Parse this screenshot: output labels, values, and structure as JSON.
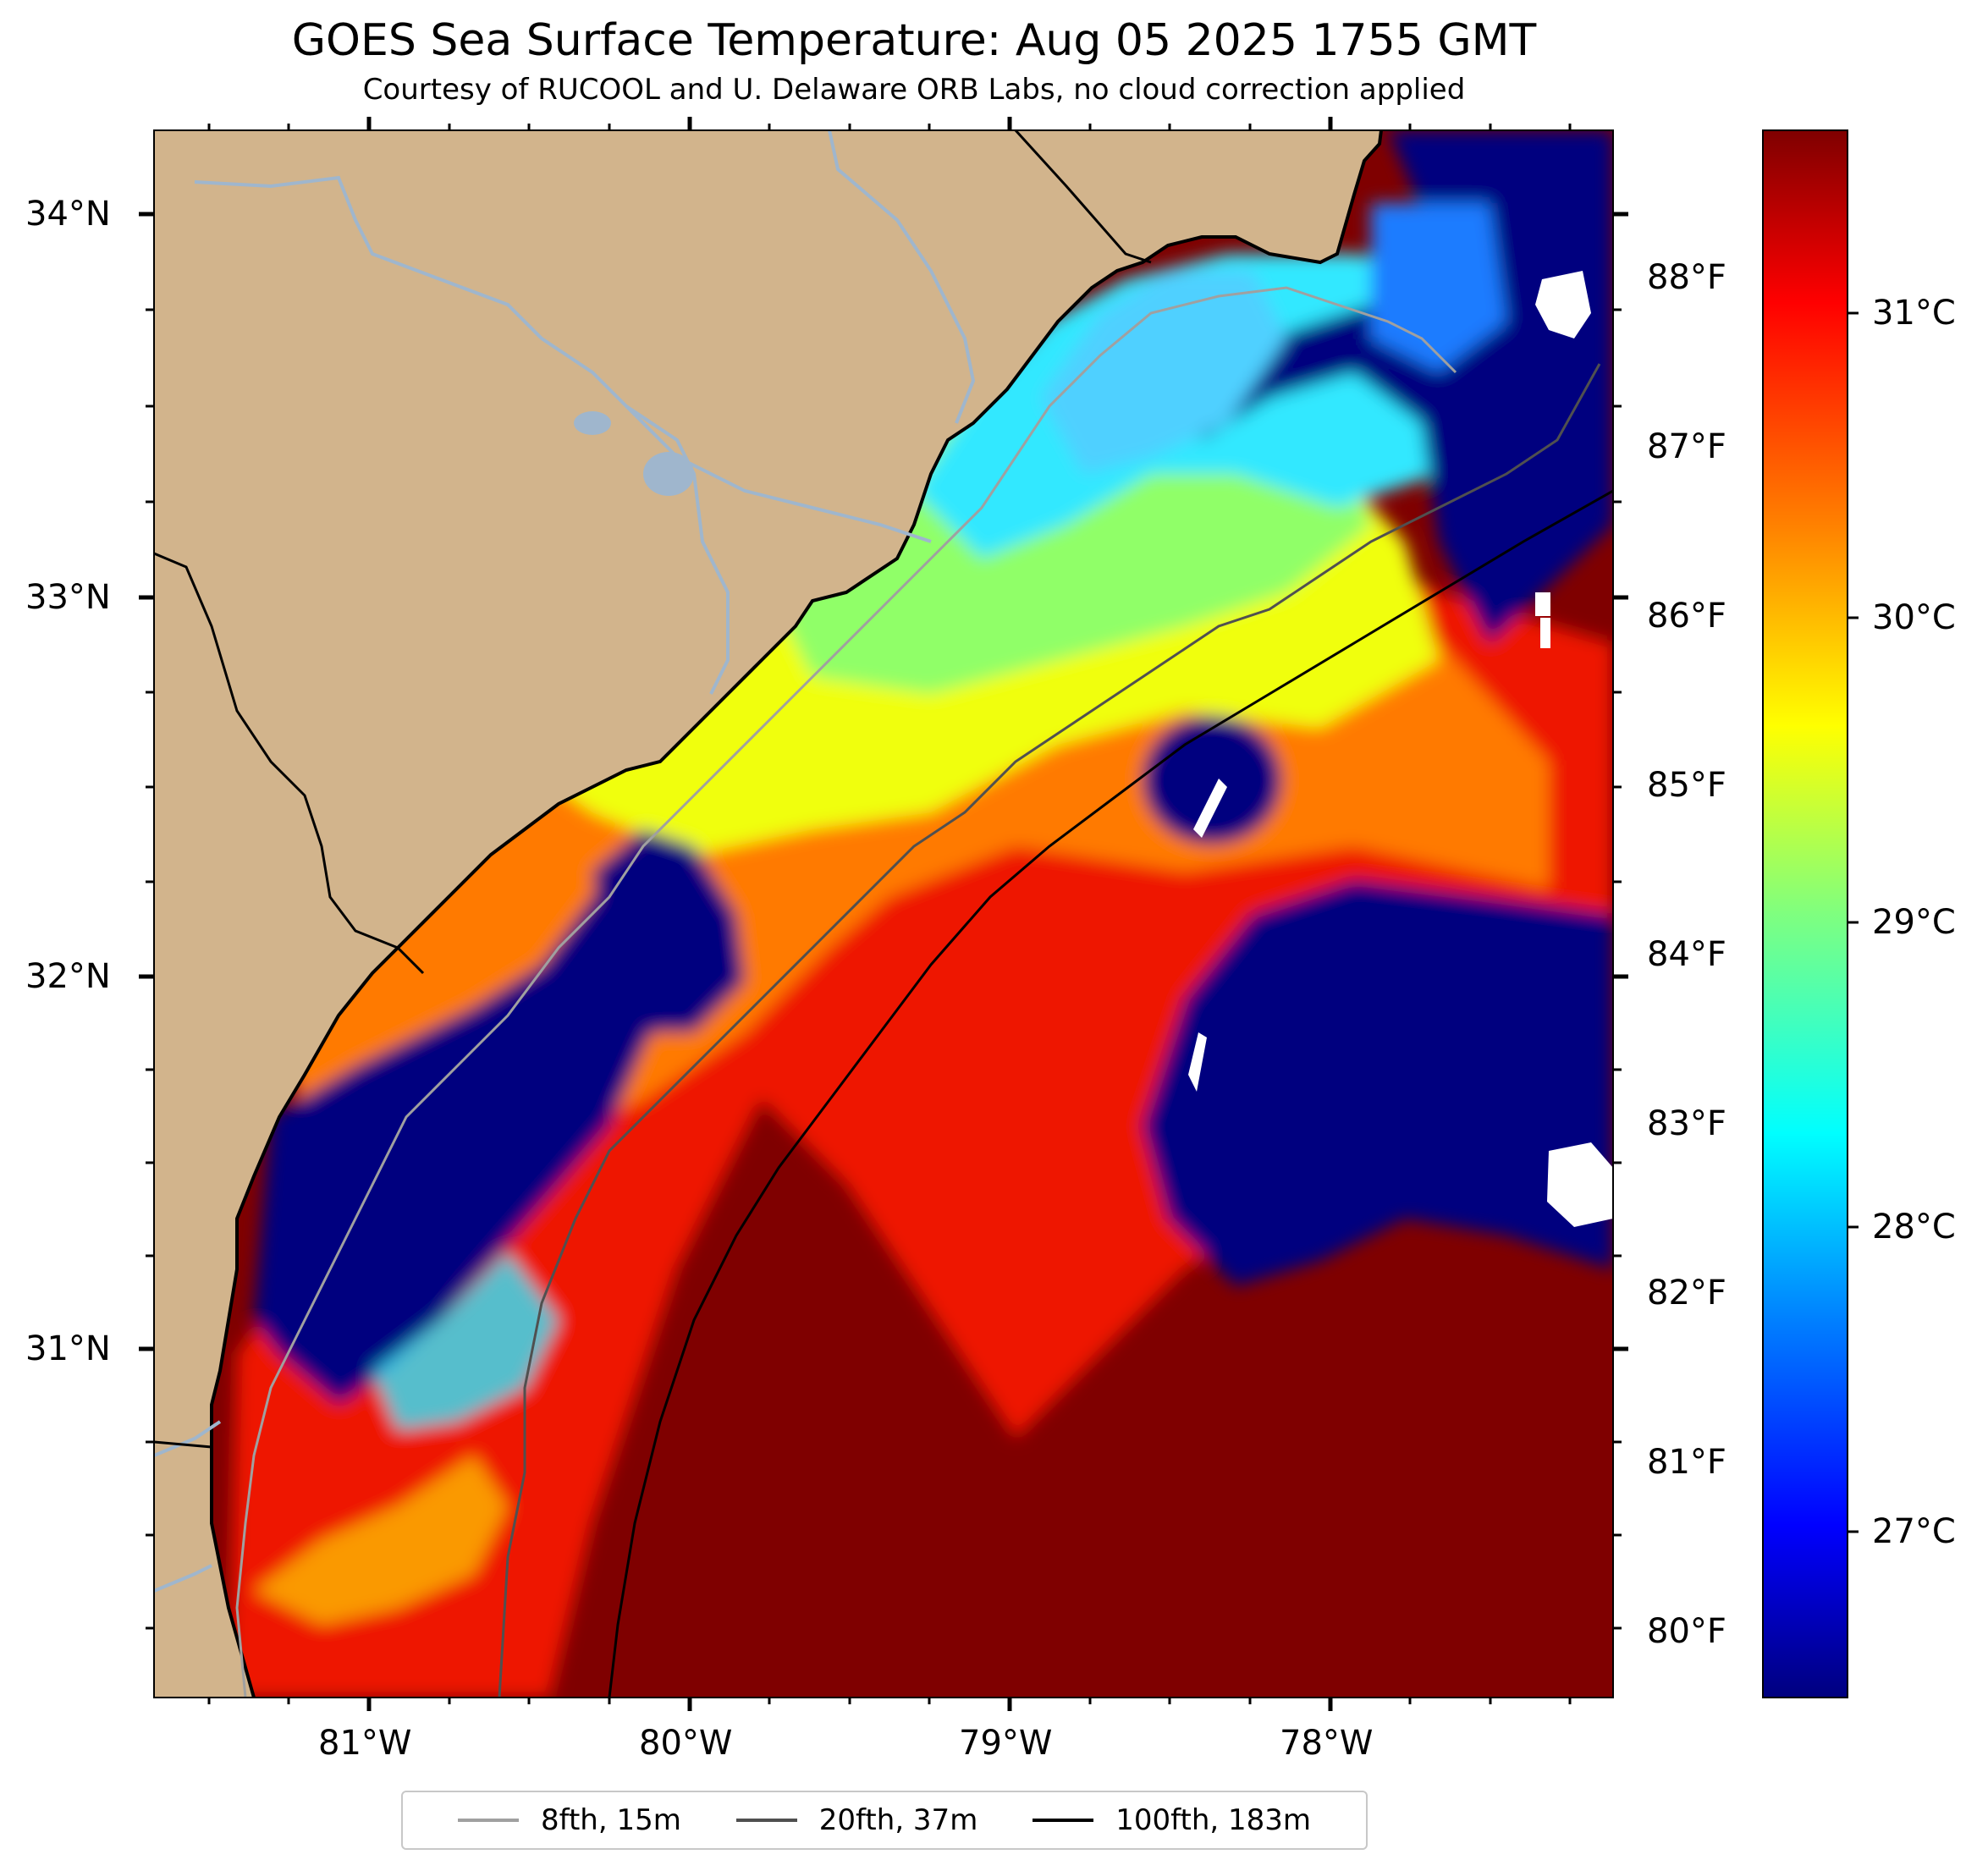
{
  "title": "GOES Sea Surface Temperature: Aug 05 2025 1755 GMT",
  "subtitle": "Courtesy of RUCOOL and U. Delaware ORB Labs, no cloud correction applied",
  "axes": {
    "lat_labels": [
      "34°N",
      "33°N",
      "32°N",
      "31°N"
    ],
    "lon_labels": [
      "81°W",
      "80°W",
      "79°W",
      "78°W"
    ],
    "fahrenheit_labels": [
      "88°F",
      "87°F",
      "86°F",
      "85°F",
      "84°F",
      "83°F",
      "82°F",
      "81°F",
      "80°F"
    ],
    "celsius_labels": [
      "31°C",
      "30°C",
      "29°C",
      "28°C",
      "27°C"
    ]
  },
  "colorbar": {
    "colormap": "jet",
    "colors": [
      "#00007f",
      "#0000ff",
      "#007fff",
      "#00ffff",
      "#7fff7f",
      "#ffff00",
      "#ff7f00",
      "#ff0000",
      "#7f0000"
    ]
  },
  "legend": [
    {
      "label": "8fth, 15m",
      "color": "#a0a0a0",
      "width": 4
    },
    {
      "label": "20fth, 37m",
      "color": "#505050",
      "width": 4
    },
    {
      "label": "100fth, 183m",
      "color": "#000000",
      "width": 4
    }
  ],
  "map_colors": {
    "land": "#d2b48c",
    "rivers": "#9fb6cd",
    "boundary": "#000000",
    "coast": "#000000",
    "no_data": "#ffffff"
  }
}
